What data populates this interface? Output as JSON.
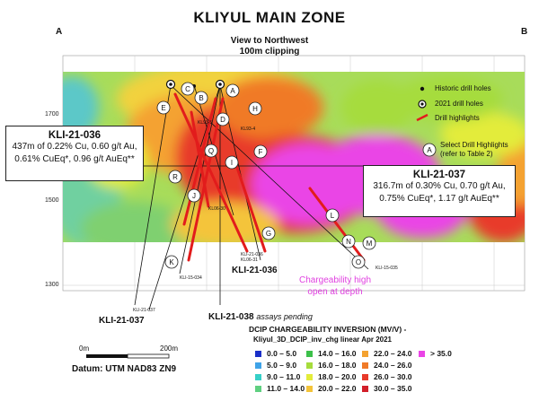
{
  "title": "KLIYUL MAIN ZONE",
  "corner_a": "A",
  "corner_b": "B",
  "view_line1": "View to Northwest",
  "view_line2": "100m clipping",
  "elevations": [
    "1700",
    "1500",
    "1300"
  ],
  "legend": {
    "historic": "Historic drill holes",
    "drill2021": "2021 drill holes",
    "highlights": "Drill highlights",
    "select_letter": "A",
    "select_line1": "Select Drill Highlights",
    "select_line2": "(refer to Table 2)"
  },
  "box_036": {
    "title": "KLI-21-036",
    "line1": "437m of 0.22% Cu, 0.60 g/t Au,",
    "line2": "0.61% CuEq*, 0.96 g/t AuEq**"
  },
  "box_037": {
    "title": "KLI-21-037",
    "line1": "316.7m of 0.30% Cu, 0.70 g/t Au,",
    "line2": "0.75% CuEq*, 1.17 g/t AuEq**"
  },
  "hole_labels": {
    "kli036": "KLI-21-036",
    "kli037": "KLI-21-037",
    "kli038": "KLI-21-038",
    "kli038_note": "assays pending"
  },
  "small_labels": [
    "KL93-5",
    "KL93-4",
    "KL06-30",
    "KLI-21-036",
    "KL06-31",
    "KLI-15-034",
    "KLI-15-035",
    "KLI-21-037"
  ],
  "letters": [
    "A",
    "B",
    "C",
    "D",
    "E",
    "F",
    "G",
    "H",
    "I",
    "J",
    "K",
    "L",
    "M",
    "N",
    "O",
    "Q",
    "R"
  ],
  "chargeability_note_1": "Chargeability high",
  "chargeability_note_2": "open at depth",
  "scale": {
    "zero": "0m",
    "end": "200m"
  },
  "datum": "Datum: UTM NAD83 ZN9",
  "dcip": {
    "title": "DCIP CHARGEABILITY INVERSION (MV/V) -",
    "subtitle": "Kliyul_3D_DCIP_inv_chg linear Apr 2021",
    "ranges": [
      {
        "label": "0.0 – 5.0",
        "color": "#1a2fc8"
      },
      {
        "label": "5.0 – 9.0",
        "color": "#3fa3e8"
      },
      {
        "label": "9.0 – 11.0",
        "color": "#36d0c8"
      },
      {
        "label": "11.0 – 14.0",
        "color": "#5fd080"
      },
      {
        "label": "14.0 – 16.0",
        "color": "#3cc04a"
      },
      {
        "label": "16.0 – 18.0",
        "color": "#a6dc3c"
      },
      {
        "label": "18.0 – 20.0",
        "color": "#e3ec3a"
      },
      {
        "label": "20.0 – 22.0",
        "color": "#f4c43a"
      },
      {
        "label": "22.0 – 24.0",
        "color": "#f4a230"
      },
      {
        "label": "24.0 – 26.0",
        "color": "#f07a28"
      },
      {
        "label": "26.0 – 30.0",
        "color": "#e83a2a"
      },
      {
        "label": "30.0 – 35.0",
        "color": "#d21f2a"
      },
      {
        "label": "> 35.0",
        "color": "#ea44e6"
      }
    ]
  }
}
